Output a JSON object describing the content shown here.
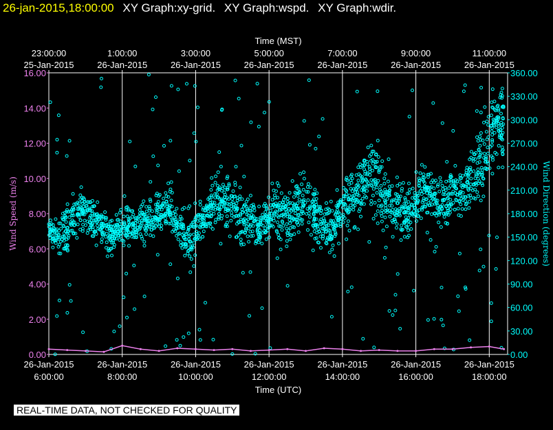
{
  "header": {
    "timestamp": "26-jan-2015,18:00:00",
    "graph_titles": [
      "XY Graph:xy-grid.",
      "XY Graph:wspd.",
      "XY Graph:wdir."
    ]
  },
  "notice": "REAL-TIME DATA, NOT CHECKED FOR QUALITY",
  "colors": {
    "background": "#000000",
    "wind_speed": "#ee82ee",
    "wind_direction": "#00ffff",
    "text": "#ffffff",
    "grid": "#ffffff"
  },
  "chart_data": {
    "type": "scatter",
    "top_axis": {
      "label": "Time (MST)",
      "ticks": [
        {
          "time": "23:00:00",
          "date": "25-Jan-2015",
          "x_hour_utc": 6
        },
        {
          "time": "1:00:00",
          "date": "26-Jan-2015",
          "x_hour_utc": 8
        },
        {
          "time": "3:00:00",
          "date": "26-Jan-2015",
          "x_hour_utc": 10
        },
        {
          "time": "5:00:00",
          "date": "26-Jan-2015",
          "x_hour_utc": 12
        },
        {
          "time": "7:00:00",
          "date": "26-Jan-2015",
          "x_hour_utc": 14
        },
        {
          "time": "9:00:00",
          "date": "26-Jan-2015",
          "x_hour_utc": 16
        },
        {
          "time": "11:00:00",
          "date": "26-Jan-2015",
          "x_hour_utc": 18
        }
      ]
    },
    "bottom_axis": {
      "label": "Time (UTC)",
      "ticks": [
        {
          "date": "26-Jan-2015",
          "time": "6:00:00",
          "x_hour_utc": 6
        },
        {
          "date": "26-Jan-2015",
          "time": "8:00:00",
          "x_hour_utc": 8
        },
        {
          "date": "26-Jan-2015",
          "time": "10:00:00",
          "x_hour_utc": 10
        },
        {
          "date": "26-Jan-2015",
          "time": "12:00:00",
          "x_hour_utc": 12
        },
        {
          "date": "26-Jan-2015",
          "time": "14:00:00",
          "x_hour_utc": 14
        },
        {
          "date": "26-Jan-2015",
          "time": "16:00:00",
          "x_hour_utc": 16
        },
        {
          "date": "26-Jan-2015",
          "time": "18:00:00",
          "x_hour_utc": 18
        }
      ],
      "xlim_hour_utc": [
        6,
        18.5
      ]
    },
    "left_axis": {
      "label": "Wind Speed (m/s)",
      "ylim": [
        0,
        16
      ],
      "ticks": [
        "0.00",
        "2.00",
        "4.00",
        "6.00",
        "8.00",
        "10.00",
        "12.00",
        "14.00",
        "16.00"
      ]
    },
    "right_axis": {
      "label": "Wind Direction (degrees)",
      "ylim": [
        0,
        360
      ],
      "ticks": [
        "0.00",
        "30.00",
        "60.00",
        "90.00",
        "120.00",
        "150.00",
        "180.00",
        "210.00",
        "240.00",
        "270.00",
        "300.00",
        "330.00",
        "360.00"
      ]
    },
    "grid": true,
    "series": [
      {
        "axis": "left",
        "style": "line",
        "x_hour_utc": [
          6.0,
          6.5,
          7.0,
          7.5,
          8.0,
          8.5,
          9.0,
          9.5,
          10.0,
          10.5,
          11.0,
          11.5,
          12.0,
          12.5,
          13.0,
          13.5,
          14.0,
          14.5,
          15.0,
          15.5,
          16.0,
          16.5,
          17.0,
          17.5,
          18.0,
          18.4
        ],
        "values": [
          0.3,
          0.25,
          0.2,
          0.15,
          0.5,
          0.3,
          0.2,
          0.35,
          0.3,
          0.25,
          0.3,
          0.2,
          0.25,
          0.3,
          0.2,
          0.35,
          0.3,
          0.2,
          0.25,
          0.2,
          0.2,
          0.3,
          0.3,
          0.4,
          0.45,
          0.3
        ]
      },
      {
        "axis": "right",
        "style": "scatter",
        "x_hour_utc": [
          6.0,
          6.25,
          6.5,
          6.75,
          7.0,
          7.25,
          7.5,
          7.75,
          8.0,
          8.25,
          8.5,
          8.75,
          9.0,
          9.25,
          9.5,
          9.75,
          10.0,
          10.25,
          10.5,
          10.75,
          11.0,
          11.25,
          11.5,
          11.75,
          12.0,
          12.25,
          12.5,
          12.75,
          13.0,
          13.25,
          13.5,
          13.75,
          14.0,
          14.25,
          14.5,
          14.75,
          15.0,
          15.25,
          15.5,
          15.75,
          16.0,
          16.25,
          16.5,
          16.75,
          17.0,
          17.25,
          17.5,
          17.75,
          18.0,
          18.25,
          18.4
        ],
        "values": [
          160,
          150,
          165,
          175,
          190,
          170,
          160,
          150,
          165,
          160,
          170,
          175,
          180,
          190,
          170,
          150,
          160,
          175,
          200,
          195,
          190,
          180,
          170,
          160,
          175,
          180,
          170,
          190,
          200,
          180,
          160,
          165,
          190,
          200,
          220,
          230,
          210,
          200,
          190,
          180,
          200,
          210,
          200,
          190,
          210,
          200,
          220,
          250,
          270,
          300,
          290
        ],
        "spread": [
          20,
          25,
          30,
          25,
          25,
          20,
          25,
          20,
          25,
          20,
          25,
          25,
          25,
          30,
          25,
          30,
          30,
          30,
          30,
          35,
          35,
          30,
          25,
          25,
          30,
          35,
          30,
          35,
          35,
          30,
          30,
          30,
          40,
          40,
          40,
          45,
          40,
          35,
          35,
          30,
          35,
          35,
          30,
          30,
          35,
          40,
          45,
          50,
          50,
          45,
          40
        ]
      }
    ]
  }
}
